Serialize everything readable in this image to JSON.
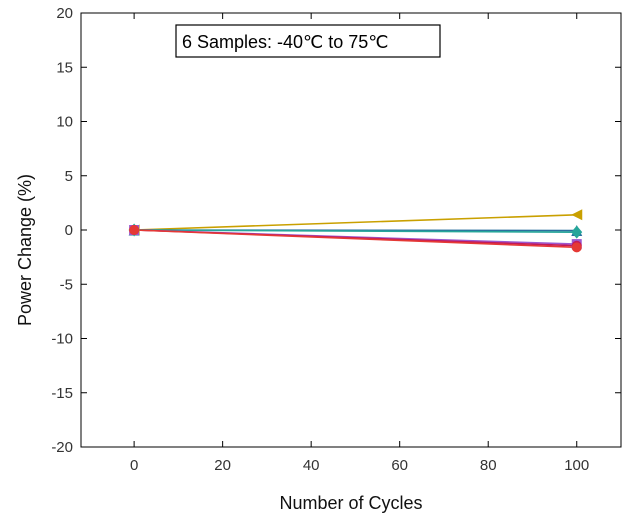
{
  "chart_data": {
    "type": "line",
    "title": "",
    "annotation": "6 Samples: -40℃ to 75℃",
    "xlabel": "Number of Cycles",
    "ylabel": "Power Change (%)",
    "xlim": [
      -12,
      110
    ],
    "ylim": [
      -20,
      20
    ],
    "xticks": [
      0,
      20,
      40,
      60,
      80,
      100
    ],
    "yticks": [
      -20,
      -15,
      -10,
      -5,
      0,
      5,
      10,
      15,
      20
    ],
    "grid": false,
    "legend": "none",
    "x": [
      0,
      100
    ],
    "series": [
      {
        "values": [
          0,
          1.4
        ],
        "color": "#c9a000",
        "marker": "triangle-left"
      },
      {
        "values": [
          0,
          -0.05
        ],
        "color": "#2a6f9e",
        "marker": "triangle-up"
      },
      {
        "values": [
          0,
          -0.2
        ],
        "color": "#26a69a",
        "marker": "diamond"
      },
      {
        "values": [
          0,
          -1.3
        ],
        "color": "#9b59d0",
        "marker": "square"
      },
      {
        "values": [
          0,
          -1.45
        ],
        "color": "#c2185b",
        "marker": "circle"
      },
      {
        "values": [
          0,
          -1.6
        ],
        "color": "#e53935",
        "marker": "circle"
      }
    ]
  }
}
